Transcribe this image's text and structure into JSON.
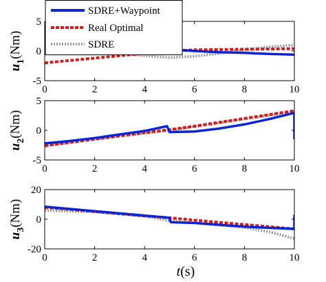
{
  "figure": {
    "xlabel": {
      "var": "t",
      "unit": "(s)"
    }
  },
  "legend": {
    "entries": [
      {
        "label": "SDRE+Waypoint",
        "color": "#0b24d6",
        "style": "solid"
      },
      {
        "label": "Real Optimal",
        "color": "#d01c1c",
        "style": "dashed"
      },
      {
        "label": "SDRE",
        "color": "#9a9a9a",
        "style": "dotted"
      }
    ]
  },
  "chart_data": [
    {
      "type": "line",
      "ylabel": {
        "var": "u",
        "sub": "1",
        "unit": "(Nm)"
      },
      "xlim": [
        0,
        10
      ],
      "ylim": [
        -5,
        5
      ],
      "xticks": [
        0,
        2,
        4,
        6,
        8,
        10
      ],
      "yticks": [
        -5,
        0,
        5
      ],
      "series": [
        {
          "name": "SDRE",
          "x": [
            0,
            1,
            2,
            3,
            4,
            5,
            6,
            7,
            8,
            9,
            10
          ],
          "y": [
            0.6,
            0.3,
            0.0,
            -0.4,
            -0.8,
            -1.1,
            -0.9,
            -0.4,
            0.2,
            0.7,
            1.0
          ]
        },
        {
          "name": "Real Optimal",
          "x": [
            0,
            2,
            4,
            5,
            6,
            8,
            10
          ],
          "y": [
            -2.0,
            -1.2,
            -0.4,
            0.0,
            0.2,
            0.3,
            0.4
          ]
        },
        {
          "name": "SDRE+Waypoint",
          "x": [
            0,
            1,
            2,
            3,
            4,
            5,
            6,
            7,
            8,
            9,
            10
          ],
          "y": [
            -0.3,
            -0.3,
            -0.2,
            -0.1,
            0.0,
            0.3,
            0.0,
            -0.2,
            -0.3,
            -0.5,
            -0.6
          ]
        }
      ]
    },
    {
      "type": "line",
      "ylabel": {
        "var": "u",
        "sub": "2",
        "unit": "(Nm)"
      },
      "xlim": [
        0,
        10
      ],
      "ylim": [
        -5,
        5
      ],
      "xticks": [
        0,
        2,
        4,
        6,
        8,
        10
      ],
      "yticks": [
        -5,
        0,
        5
      ],
      "series": [
        {
          "name": "SDRE",
          "x": [
            0,
            2,
            4,
            5,
            6,
            8,
            10
          ],
          "y": [
            -2.6,
            -1.5,
            -0.5,
            0.0,
            0.6,
            1.9,
            3.1
          ]
        },
        {
          "name": "Real Optimal",
          "x": [
            0,
            2,
            4,
            5,
            6,
            8,
            10
          ],
          "y": [
            -2.6,
            -1.5,
            -0.4,
            0.1,
            0.7,
            2.0,
            3.3
          ]
        },
        {
          "name": "SDRE+Waypoint",
          "x": [
            0,
            1,
            2,
            3,
            4,
            4.9,
            5.0,
            6,
            7,
            8,
            9,
            9.95,
            10,
            10
          ],
          "y": [
            -2.2,
            -1.8,
            -1.3,
            -0.7,
            -0.1,
            0.7,
            -0.3,
            -0.2,
            0.3,
            1.0,
            1.9,
            2.9,
            2.9,
            -1.5
          ]
        }
      ]
    },
    {
      "type": "line",
      "ylabel": {
        "var": "u",
        "sub": "3",
        "unit": "(Nm)"
      },
      "xlim": [
        0,
        10
      ],
      "ylim": [
        -20,
        20
      ],
      "xticks": [
        0,
        2,
        4,
        6,
        8,
        10
      ],
      "yticks": [
        -20,
        0,
        20
      ],
      "series": [
        {
          "name": "SDRE",
          "x": [
            0,
            2,
            4,
            5,
            6,
            8,
            9,
            10
          ],
          "y": [
            6.0,
            5.0,
            2.0,
            -1.0,
            -2.5,
            -5.5,
            -8.5,
            -13.0
          ]
        },
        {
          "name": "Real Optimal",
          "x": [
            0,
            2,
            4,
            5,
            6,
            8,
            10
          ],
          "y": [
            8.0,
            5.2,
            2.3,
            1.0,
            -0.6,
            -3.6,
            -6.5
          ]
        },
        {
          "name": "SDRE+Waypoint",
          "x": [
            0,
            2,
            4,
            5,
            5.05,
            6,
            8,
            9.95,
            10,
            10
          ],
          "y": [
            8.5,
            5.5,
            2.5,
            1.0,
            -2.0,
            -2.5,
            -5.0,
            -6.5,
            -6.5,
            3.0
          ]
        }
      ]
    }
  ]
}
